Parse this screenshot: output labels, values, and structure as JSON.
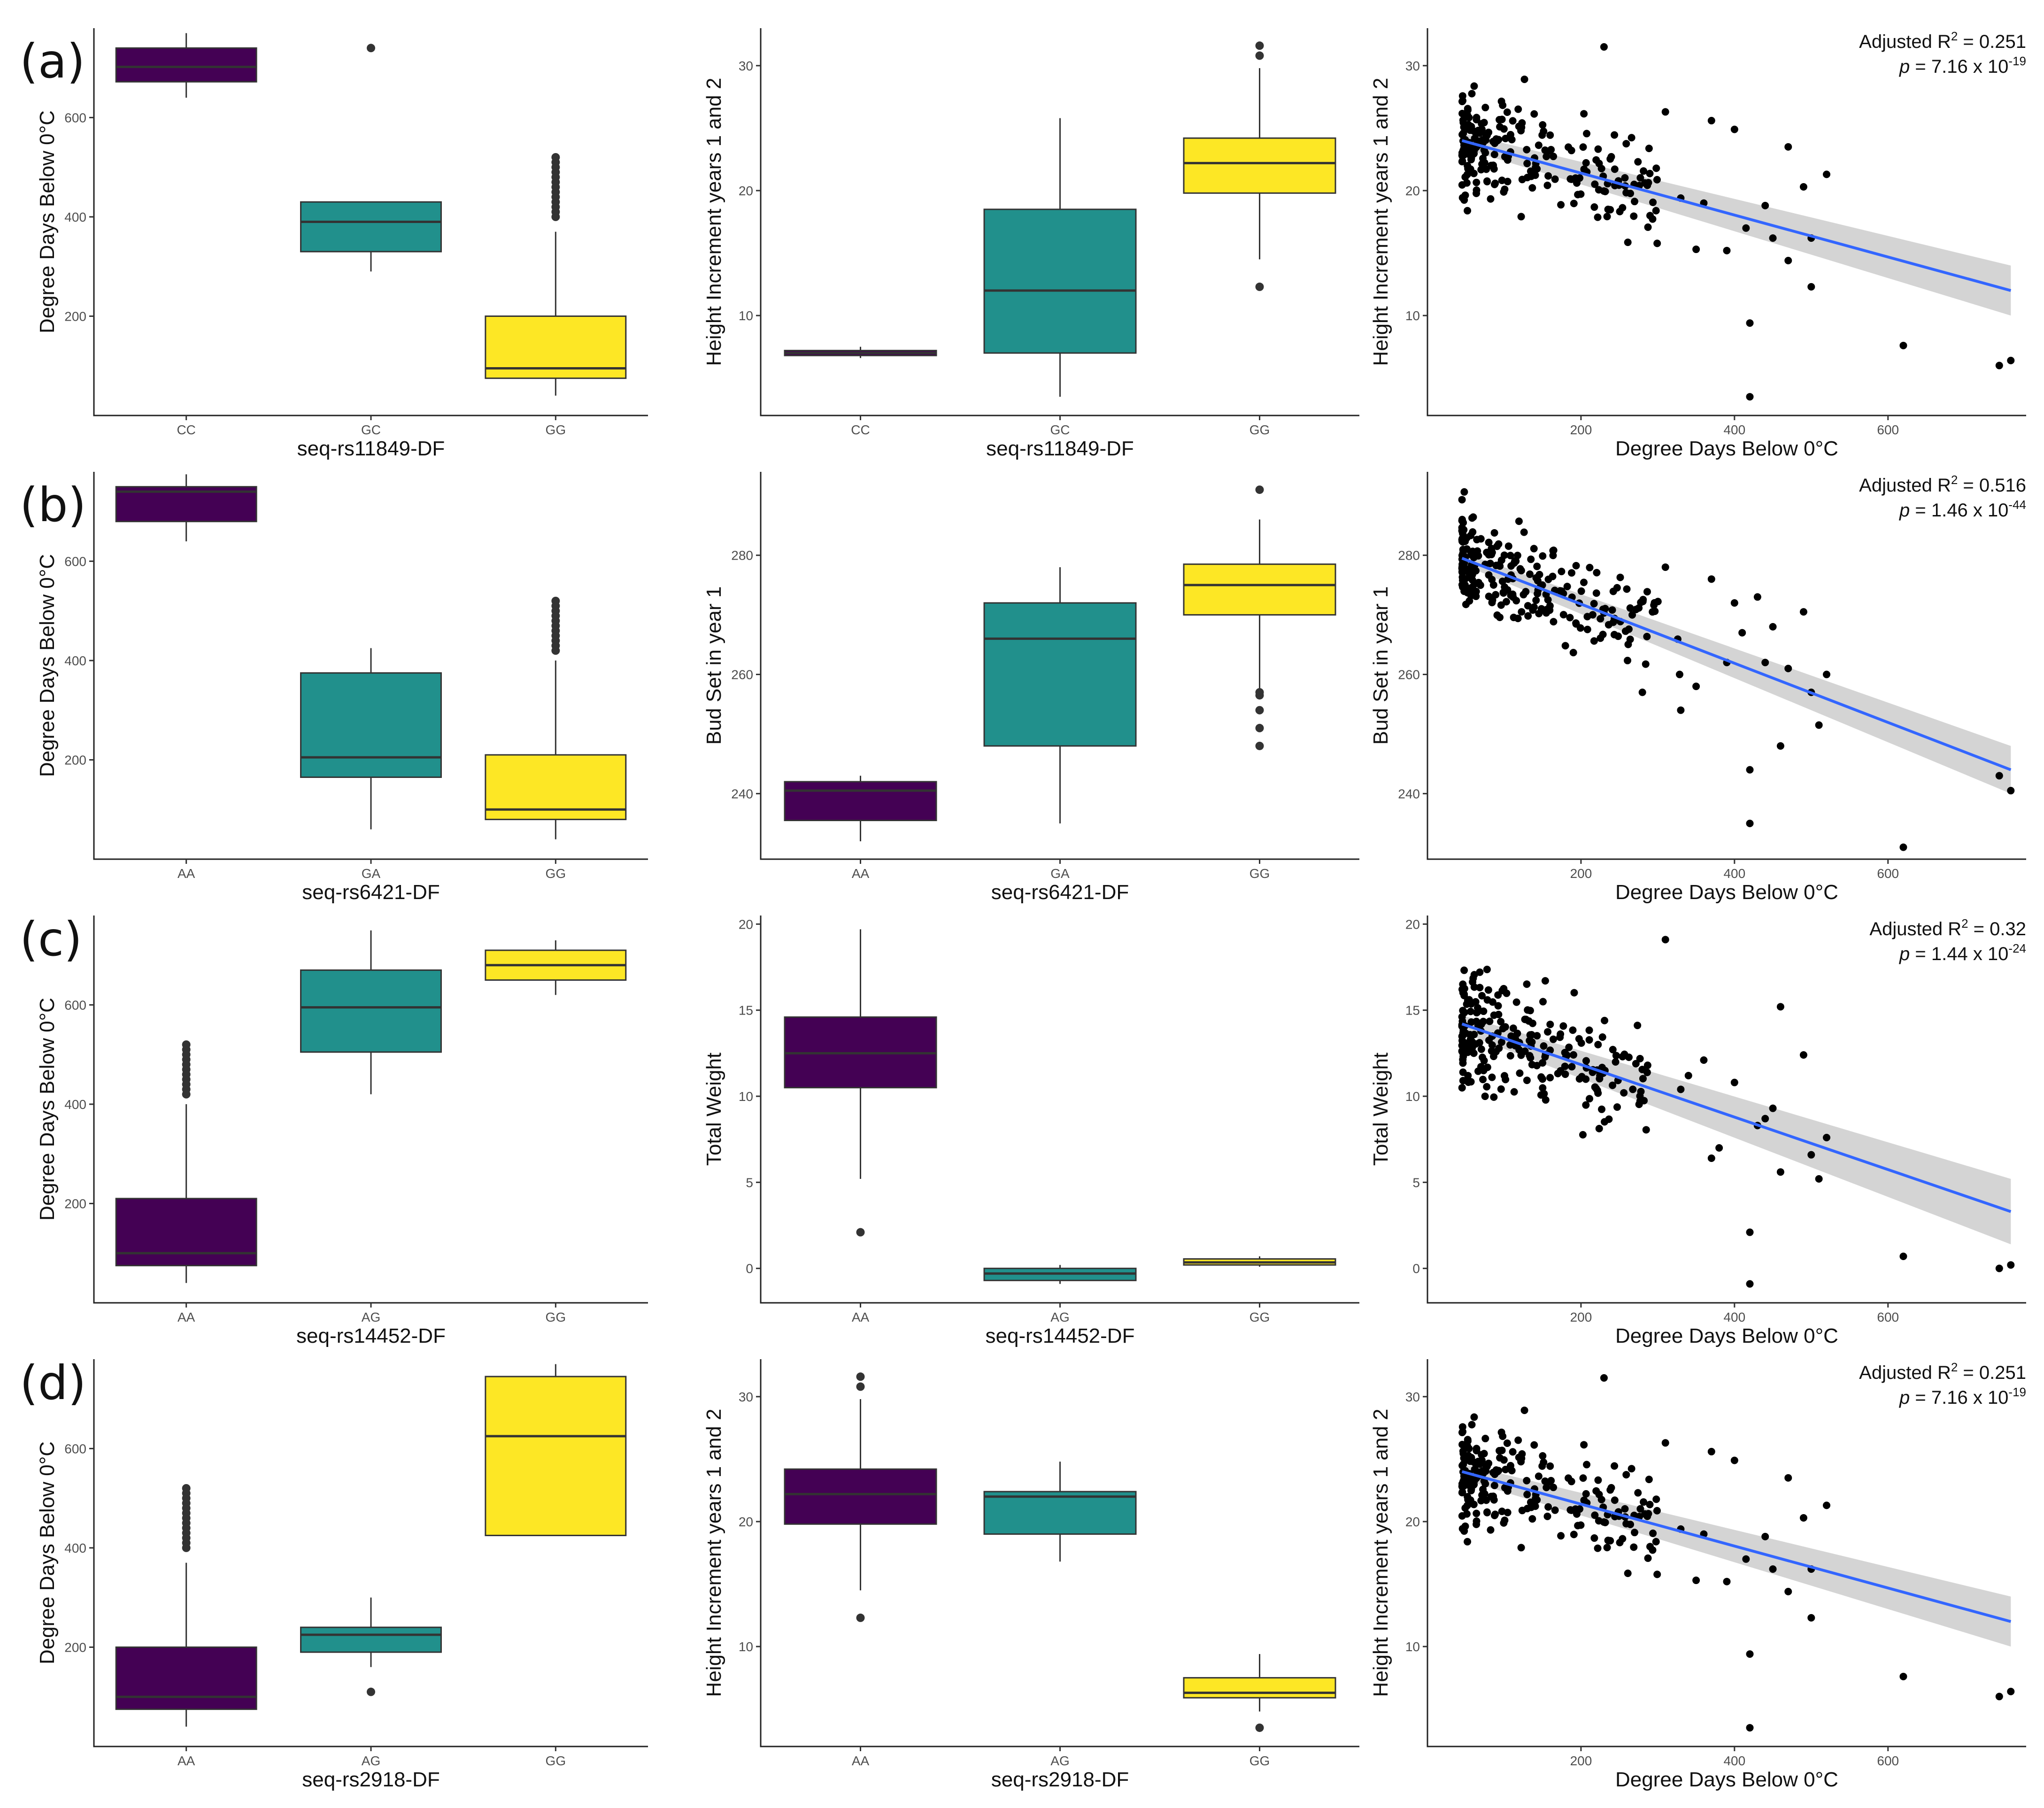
{
  "colors": {
    "AA_or_CC": "#440154",
    "mid": "#21908c",
    "GG": "#fde725",
    "fit": "#3366ff",
    "band": "#cccccc"
  },
  "row_labels": [
    "(a)",
    "(b)",
    "(c)",
    "(d)"
  ],
  "chart_data": [
    {
      "id": "a-box1",
      "type": "box",
      "xlabel": "seq-rs11849-DF",
      "ylabel": "Degree Days Below 0°C",
      "categories": [
        "CC",
        "GC",
        "GG"
      ],
      "ylim": [
        0,
        780
      ],
      "yticks": [
        200,
        400,
        600
      ],
      "boxes": [
        {
          "category": "CC",
          "color": "#440154",
          "lower_whisker": 640,
          "q1": 672,
          "median": 702,
          "q3": 740,
          "upper_whisker": 770,
          "outliers": []
        },
        {
          "category": "GC",
          "color": "#21908c",
          "lower_whisker": 290,
          "q1": 330,
          "median": 390,
          "q3": 430,
          "upper_whisker": 430,
          "outliers": [
            740
          ]
        },
        {
          "category": "GG",
          "color": "#fde725",
          "lower_whisker": 40,
          "q1": 75,
          "median": 95,
          "q3": 200,
          "upper_whisker": 370,
          "outliers": [
            400,
            410,
            420,
            430,
            440,
            450,
            460,
            470,
            480,
            490,
            500,
            510,
            520
          ]
        }
      ]
    },
    {
      "id": "a-box2",
      "type": "box",
      "xlabel": "seq-rs11849-DF",
      "ylabel": "Height Increment years 1 and 2",
      "categories": [
        "CC",
        "GC",
        "GG"
      ],
      "ylim": [
        2,
        33
      ],
      "yticks": [
        10,
        20,
        30
      ],
      "boxes": [
        {
          "category": "CC",
          "color": "#440154",
          "lower_whisker": 6.6,
          "q1": 6.8,
          "median": 7.0,
          "q3": 7.2,
          "upper_whisker": 7.5,
          "outliers": []
        },
        {
          "category": "GC",
          "color": "#21908c",
          "lower_whisker": 3.5,
          "q1": 7.0,
          "median": 12.0,
          "q3": 18.5,
          "upper_whisker": 25.8,
          "outliers": []
        },
        {
          "category": "GG",
          "color": "#fde725",
          "lower_whisker": 14.5,
          "q1": 19.8,
          "median": 22.2,
          "q3": 24.2,
          "upper_whisker": 29.8,
          "outliers": [
            12.3,
            30.8,
            31.6
          ]
        }
      ]
    },
    {
      "id": "a-scatter",
      "type": "scatter",
      "xlabel": "Degree Days Below 0°C",
      "ylabel": "Height Increment years 1 and 2",
      "xlim": [
        0,
        780
      ],
      "ylim": [
        2,
        33
      ],
      "xticks": [
        200,
        400,
        600
      ],
      "yticks": [
        10,
        20,
        30
      ],
      "annotation": {
        "r2_prefix": "Adjusted R",
        "r2_sup": "2",
        "r2_value": " = 0.251",
        "p_label": "p",
        "p_value": " = 7.16 x 10",
        "p_exp": "-19"
      },
      "fit": {
        "x0": 45,
        "y0": 24.0,
        "x1": 760,
        "y1": 12.0,
        "band0": 0.6,
        "band1": 2.0
      },
      "cluster": {
        "n": 230,
        "xmin": 45,
        "xmax": 300,
        "ymin": 15,
        "ymax": 31,
        "seed": 11
      },
      "points": [
        [
          420,
          3.5
        ],
        [
          420,
          9.4
        ],
        [
          620,
          7.6
        ],
        [
          745,
          6.0
        ],
        [
          760,
          6.4
        ],
        [
          500,
          12.3
        ],
        [
          470,
          14.4
        ],
        [
          450,
          16.2
        ],
        [
          440,
          18.8
        ],
        [
          470,
          23.5
        ],
        [
          520,
          21.3
        ],
        [
          400,
          24.9
        ],
        [
          230,
          31.5
        ],
        [
          370,
          25.6
        ],
        [
          330,
          19.4
        ],
        [
          310,
          26.3
        ],
        [
          350,
          15.3
        ],
        [
          290,
          18.0
        ],
        [
          390,
          15.2
        ],
        [
          415,
          17.0
        ],
        [
          360,
          19.0
        ],
        [
          500,
          16.2
        ],
        [
          490,
          20.3
        ]
      ]
    },
    {
      "id": "b-box1",
      "type": "box",
      "xlabel": "seq-rs6421-DF",
      "ylabel": "Degree Days Below 0°C",
      "categories": [
        "AA",
        "GA",
        "GG"
      ],
      "ylim": [
        0,
        780
      ],
      "yticks": [
        200,
        400,
        600
      ],
      "boxes": [
        {
          "category": "AA",
          "color": "#440154",
          "lower_whisker": 640,
          "q1": 680,
          "median": 740,
          "q3": 750,
          "upper_whisker": 775,
          "outliers": []
        },
        {
          "category": "GA",
          "color": "#21908c",
          "lower_whisker": 60,
          "q1": 165,
          "median": 205,
          "q3": 375,
          "upper_whisker": 425,
          "outliers": []
        },
        {
          "category": "GG",
          "color": "#fde725",
          "lower_whisker": 40,
          "q1": 80,
          "median": 100,
          "q3": 210,
          "upper_whisker": 400,
          "outliers": [
            420,
            430,
            440,
            450,
            460,
            470,
            480,
            490,
            500,
            510,
            520
          ]
        }
      ]
    },
    {
      "id": "b-box2",
      "type": "box",
      "xlabel": "seq-rs6421-DF",
      "ylabel": "Bud Set in year 1",
      "categories": [
        "AA",
        "GA",
        "GG"
      ],
      "ylim": [
        229,
        294
      ],
      "yticks": [
        240,
        260,
        280
      ],
      "boxes": [
        {
          "category": "AA",
          "color": "#440154",
          "lower_whisker": 232,
          "q1": 235.5,
          "median": 240.5,
          "q3": 242,
          "upper_whisker": 243,
          "outliers": []
        },
        {
          "category": "GA",
          "color": "#21908c",
          "lower_whisker": 235,
          "q1": 248,
          "median": 266,
          "q3": 272,
          "upper_whisker": 278,
          "outliers": []
        },
        {
          "category": "GG",
          "color": "#fde725",
          "lower_whisker": 257.5,
          "q1": 270,
          "median": 275,
          "q3": 278.5,
          "upper_whisker": 286,
          "outliers": [
            248,
            251,
            254,
            256.5,
            257,
            291
          ]
        }
      ]
    },
    {
      "id": "b-scatter",
      "type": "scatter",
      "xlabel": "Degree Days Below 0°C",
      "ylabel": "Bud Set in year 1",
      "xlim": [
        0,
        780
      ],
      "ylim": [
        229,
        294
      ],
      "xticks": [
        200,
        400,
        600
      ],
      "yticks": [
        240,
        260,
        280
      ],
      "annotation": {
        "r2_prefix": "Adjusted R",
        "r2_sup": "2",
        "r2_value": " = 0.516",
        "p_label": "p",
        "p_value": " = 1.46 x 10",
        "p_exp": "-44"
      },
      "fit": {
        "x0": 45,
        "y0": 279.5,
        "x1": 760,
        "y1": 244.0,
        "band0": 1.0,
        "band1": 4.0
      },
      "cluster": {
        "n": 240,
        "xmin": 45,
        "xmax": 330,
        "ymin": 260,
        "ymax": 291,
        "seed": 23
      },
      "points": [
        [
          420,
          235
        ],
        [
          620,
          231
        ],
        [
          745,
          243
        ],
        [
          760,
          240.5
        ],
        [
          420,
          244
        ],
        [
          460,
          248
        ],
        [
          510,
          251.5
        ],
        [
          520,
          260
        ],
        [
          490,
          270.5
        ],
        [
          430,
          273
        ],
        [
          400,
          272
        ],
        [
          440,
          262
        ],
        [
          470,
          261
        ],
        [
          330,
          254
        ],
        [
          350,
          258
        ],
        [
          370,
          276
        ],
        [
          310,
          278
        ],
        [
          280,
          257
        ],
        [
          390,
          262
        ],
        [
          410,
          267
        ],
        [
          450,
          268
        ],
        [
          500,
          257
        ]
      ]
    },
    {
      "id": "c-box1",
      "type": "box",
      "xlabel": "seq-rs14452-DF",
      "ylabel": "Degree Days Below 0°C",
      "categories": [
        "AA",
        "AG",
        "GG"
      ],
      "ylim": [
        0,
        780
      ],
      "yticks": [
        200,
        400,
        600
      ],
      "boxes": [
        {
          "category": "AA",
          "color": "#440154",
          "lower_whisker": 40,
          "q1": 75,
          "median": 100,
          "q3": 210,
          "upper_whisker": 400,
          "outliers": [
            420,
            430,
            440,
            450,
            460,
            470,
            480,
            490,
            500,
            510,
            520
          ]
        },
        {
          "category": "AG",
          "color": "#21908c",
          "lower_whisker": 420,
          "q1": 505,
          "median": 595,
          "q3": 670,
          "upper_whisker": 750,
          "outliers": []
        },
        {
          "category": "GG",
          "color": "#fde725",
          "lower_whisker": 620,
          "q1": 650,
          "median": 680,
          "q3": 710,
          "upper_whisker": 730,
          "outliers": []
        }
      ]
    },
    {
      "id": "c-box2",
      "type": "box",
      "xlabel": "seq-rs14452-DF",
      "ylabel": "Total Weight",
      "categories": [
        "AA",
        "AG",
        "GG"
      ],
      "ylim": [
        -2,
        20.5
      ],
      "yticks": [
        0,
        5,
        10,
        15,
        20
      ],
      "boxes": [
        {
          "category": "AA",
          "color": "#440154",
          "lower_whisker": 5.2,
          "q1": 10.5,
          "median": 12.5,
          "q3": 14.6,
          "upper_whisker": 19.7,
          "outliers": [
            2.1
          ]
        },
        {
          "category": "AG",
          "color": "#21908c",
          "lower_whisker": -0.9,
          "q1": -0.7,
          "median": -0.3,
          "q3": 0,
          "upper_whisker": 0.2,
          "outliers": []
        },
        {
          "category": "GG",
          "color": "#fde725",
          "lower_whisker": 0.1,
          "q1": 0.2,
          "median": 0.35,
          "q3": 0.55,
          "upper_whisker": 0.7,
          "outliers": []
        }
      ]
    },
    {
      "id": "c-scatter",
      "type": "scatter",
      "xlabel": "Degree Days Below 0°C",
      "ylabel": "Total Weight",
      "xlim": [
        0,
        780
      ],
      "ylim": [
        -2,
        20.5
      ],
      "xticks": [
        200,
        400,
        600
      ],
      "yticks": [
        0,
        5,
        10,
        15,
        20
      ],
      "annotation": {
        "r2_prefix": "Adjusted R",
        "r2_sup": "2",
        "r2_value": " = 0.32",
        "p_label": "p",
        "p_value": " = 1.44 x 10",
        "p_exp": "-24"
      },
      "fit": {
        "x0": 45,
        "y0": 14.2,
        "x1": 760,
        "y1": 3.3,
        "band0": 0.5,
        "band1": 1.9
      },
      "cluster": {
        "n": 230,
        "xmin": 45,
        "xmax": 290,
        "ymin": 7,
        "ymax": 19.5,
        "seed": 37
      },
      "points": [
        [
          420,
          -0.9
        ],
        [
          420,
          2.1
        ],
        [
          620,
          0.7
        ],
        [
          745,
          0
        ],
        [
          760,
          0.2
        ],
        [
          310,
          19.1
        ],
        [
          460,
          15.2
        ],
        [
          490,
          12.4
        ],
        [
          500,
          6.6
        ],
        [
          510,
          5.2
        ],
        [
          520,
          7.6
        ],
        [
          460,
          5.6
        ],
        [
          430,
          8.3
        ],
        [
          440,
          8.7
        ],
        [
          450,
          9.3
        ],
        [
          330,
          10.4
        ],
        [
          340,
          11.2
        ],
        [
          360,
          12.1
        ],
        [
          370,
          6.4
        ],
        [
          380,
          7.0
        ],
        [
          400,
          10.8
        ]
      ]
    },
    {
      "id": "d-box1",
      "type": "box",
      "xlabel": "seq-rs2918-DF",
      "ylabel": "Degree Days Below 0°C",
      "categories": [
        "AA",
        "AG",
        "GG"
      ],
      "ylim": [
        0,
        780
      ],
      "yticks": [
        200,
        400,
        600
      ],
      "boxes": [
        {
          "category": "AA",
          "color": "#440154",
          "lower_whisker": 40,
          "q1": 75,
          "median": 100,
          "q3": 200,
          "upper_whisker": 370,
          "outliers": [
            400,
            410,
            420,
            430,
            440,
            450,
            460,
            470,
            480,
            490,
            500,
            510,
            520
          ]
        },
        {
          "category": "AG",
          "color": "#21908c",
          "lower_whisker": 160,
          "q1": 190,
          "median": 225,
          "q3": 240,
          "upper_whisker": 300,
          "outliers": [
            110
          ]
        },
        {
          "category": "GG",
          "color": "#fde725",
          "lower_whisker": 425,
          "q1": 425,
          "median": 625,
          "q3": 745,
          "upper_whisker": 770,
          "outliers": []
        }
      ]
    },
    {
      "id": "d-box2",
      "type": "box",
      "xlabel": "seq-rs2918-DF",
      "ylabel": "Height Increment years 1 and 2",
      "categories": [
        "AA",
        "AG",
        "GG"
      ],
      "ylim": [
        2,
        33
      ],
      "yticks": [
        10,
        20,
        30
      ],
      "boxes": [
        {
          "category": "AA",
          "color": "#440154",
          "lower_whisker": 14.5,
          "q1": 19.8,
          "median": 22.2,
          "q3": 24.2,
          "upper_whisker": 29.8,
          "outliers": [
            12.3,
            30.8,
            31.6
          ]
        },
        {
          "category": "AG",
          "color": "#21908c",
          "lower_whisker": 16.8,
          "q1": 19.0,
          "median": 22.0,
          "q3": 22.4,
          "upper_whisker": 24.8,
          "outliers": []
        },
        {
          "category": "GG",
          "color": "#fde725",
          "lower_whisker": 4.8,
          "q1": 5.9,
          "median": 6.3,
          "q3": 7.5,
          "upper_whisker": 9.4,
          "outliers": [
            3.5
          ]
        }
      ]
    },
    {
      "id": "d-scatter",
      "type": "scatter",
      "xlabel": "Degree Days Below 0°C",
      "ylabel": "Height Increment years 1 and 2",
      "xlim": [
        0,
        780
      ],
      "ylim": [
        2,
        33
      ],
      "xticks": [
        200,
        400,
        600
      ],
      "yticks": [
        10,
        20,
        30
      ],
      "annotation": {
        "r2_prefix": "Adjusted R",
        "r2_sup": "2",
        "r2_value": " = 0.251",
        "p_label": "p",
        "p_value": " = 7.16 x 10",
        "p_exp": "-19"
      },
      "fit": {
        "x0": 45,
        "y0": 24.0,
        "x1": 760,
        "y1": 12.0,
        "band0": 0.6,
        "band1": 2.0
      },
      "cluster": {
        "n": 230,
        "xmin": 45,
        "xmax": 300,
        "ymin": 15,
        "ymax": 31,
        "seed": 11
      },
      "points": [
        [
          420,
          3.5
        ],
        [
          420,
          9.4
        ],
        [
          620,
          7.6
        ],
        [
          745,
          6.0
        ],
        [
          760,
          6.4
        ],
        [
          500,
          12.3
        ],
        [
          470,
          14.4
        ],
        [
          450,
          16.2
        ],
        [
          440,
          18.8
        ],
        [
          470,
          23.5
        ],
        [
          520,
          21.3
        ],
        [
          400,
          24.9
        ],
        [
          230,
          31.5
        ],
        [
          370,
          25.6
        ],
        [
          330,
          19.4
        ],
        [
          310,
          26.3
        ],
        [
          350,
          15.3
        ],
        [
          290,
          18.0
        ],
        [
          390,
          15.2
        ],
        [
          415,
          17.0
        ],
        [
          360,
          19.0
        ],
        [
          500,
          16.2
        ],
        [
          490,
          20.3
        ]
      ]
    }
  ]
}
